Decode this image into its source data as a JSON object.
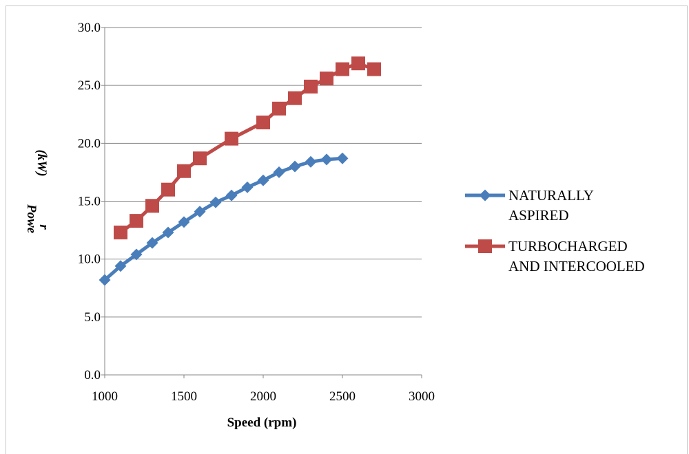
{
  "chart_data": {
    "type": "line",
    "xlabel": "Speed (rpm)",
    "ylabel_lines": [
      "Powe",
      "r",
      "(kW)"
    ],
    "xlim": [
      1000,
      3000
    ],
    "ylim": [
      0,
      30
    ],
    "x_ticks": [
      "1000",
      "1500",
      "2000",
      "2500",
      "3000"
    ],
    "y_ticks": [
      "0.0",
      "5.0",
      "10.0",
      "15.0",
      "20.0",
      "25.0",
      "30.0"
    ],
    "grid": "horizontal",
    "legend_position": "right",
    "series": [
      {
        "name_lines": [
          "NATURALLY",
          "ASPIRED"
        ],
        "color": "#4A7EBB",
        "marker": "diamond",
        "x": [
          1000,
          1100,
          1200,
          1300,
          1400,
          1500,
          1600,
          1700,
          1800,
          1900,
          2000,
          2100,
          2200,
          2300,
          2400,
          2500
        ],
        "values": [
          8.2,
          9.4,
          10.4,
          11.4,
          12.3,
          13.2,
          14.1,
          14.9,
          15.5,
          16.2,
          16.8,
          17.5,
          18.0,
          18.4,
          18.6,
          18.7
        ]
      },
      {
        "name_lines": [
          "TURBOCHARGED",
          "AND INTERCOOLED"
        ],
        "color": "#BE4B48",
        "marker": "square",
        "x": [
          1100,
          1200,
          1300,
          1400,
          1500,
          1600,
          1800,
          2000,
          2100,
          2200,
          2300,
          2400,
          2500,
          2600,
          2700
        ],
        "values": [
          12.3,
          13.3,
          14.6,
          16.0,
          17.6,
          18.7,
          20.4,
          21.8,
          23.0,
          23.9,
          24.9,
          25.6,
          26.4,
          26.9,
          26.4
        ]
      }
    ]
  }
}
